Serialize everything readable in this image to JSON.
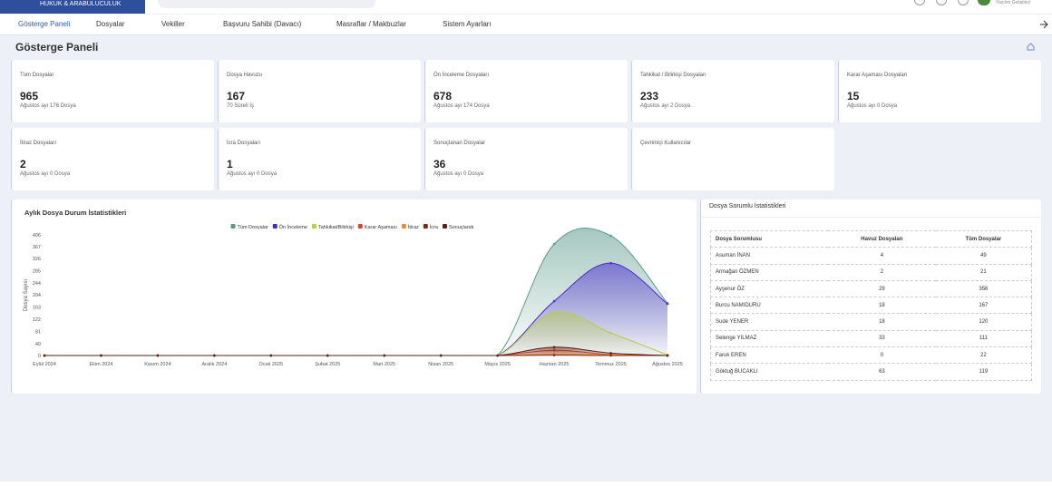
{
  "header": {
    "brand": "HUKUK & ARABULUCULUK",
    "user": "Yazılım Geliştirici"
  },
  "nav": [
    "Gösterge Paneli",
    "Dosyalar",
    "Vekiller",
    "Başvuru Sahibi (Davacı)",
    "Masraflar / Makbuzlar",
    "Sistem Ayarları"
  ],
  "page_title": "Gösterge Paneli",
  "cards": [
    {
      "label": "Tüm Dosyalar",
      "value": "965",
      "note": "Ağustos ayı 176 Dosya"
    },
    {
      "label": "Dosya Havuzu",
      "value": "167",
      "note": "70 Süreli İş"
    },
    {
      "label": "Ön İnceleme Dosyaları",
      "value": "678",
      "note": "Ağustos ayı 174 Dosya"
    },
    {
      "label": "Tahkikat / Bilirkişi Dosyaları",
      "value": "233",
      "note": "Ağustos ayı 2 Dosya"
    },
    {
      "label": "Karar Aşaması Dosyaları",
      "value": "15",
      "note": "Ağustos ayı 0 Dosya"
    },
    {
      "label": "İtiraz Dosyaları",
      "value": "2",
      "note": "Ağustos ayı 0 Dosya"
    },
    {
      "label": "İcra Dosyaları",
      "value": "1",
      "note": "Ağustos ayı 0 Dosya"
    },
    {
      "label": "Sonuçlanan Dosyalar",
      "value": "36",
      "note": "Ağustos ayı 0 Dosya"
    },
    {
      "label": "Çevrimiçi Kullanıcılar"
    }
  ],
  "chart_data": {
    "type": "line",
    "title": "Aylık Dosya Durum İstatistikleri",
    "y_label": "Dosya Sayısı",
    "categories": [
      "Eylül 2024",
      "Ekim 2024",
      "Kasım 2024",
      "Aralık 2024",
      "Ocak 2025",
      "Şubat 2025",
      "Mart 2025",
      "Nisan 2025",
      "Mayıs 2025",
      "Haziran 2025",
      "Temmuz 2025",
      "Ağustos 2025"
    ],
    "ylim": [
      0,
      406
    ],
    "yticks": [
      0,
      40,
      81,
      122,
      163,
      204,
      244,
      285,
      326,
      367,
      406
    ],
    "area": true,
    "series": [
      {
        "name": "Tüm Dosyalar",
        "color": "#5b9a8b",
        "values": [
          0,
          0,
          0,
          0,
          0,
          0,
          0,
          0,
          0,
          375,
          403,
          176
        ]
      },
      {
        "name": "Ön İnceleme",
        "color": "#4a2bd0",
        "values": [
          0,
          0,
          0,
          0,
          0,
          0,
          0,
          0,
          0,
          183,
          311,
          174
        ]
      },
      {
        "name": "Tahkikat/Bilirkişi",
        "color": "#b8cc4e",
        "values": [
          0,
          0,
          0,
          0,
          0,
          0,
          0,
          0,
          0,
          146,
          76,
          2
        ]
      },
      {
        "name": "Karar Aşaması",
        "color": "#d9452b",
        "values": [
          0,
          0,
          0,
          0,
          0,
          0,
          0,
          0,
          0,
          18,
          3,
          0
        ]
      },
      {
        "name": "İtiraz",
        "color": "#f08c2e",
        "values": [
          0,
          0,
          0,
          0,
          0,
          0,
          0,
          0,
          0,
          5,
          2,
          0
        ]
      },
      {
        "name": "İcra",
        "color": "#7a2a14",
        "values": [
          0,
          0,
          0,
          0,
          0,
          0,
          0,
          0,
          0,
          1,
          0,
          0
        ]
      },
      {
        "name": "Sonuçlandı",
        "color": "#5a1f14",
        "values": [
          0,
          0,
          0,
          0,
          0,
          0,
          0,
          0,
          0,
          28,
          8,
          0
        ]
      }
    ]
  },
  "table": {
    "title": "Dosya Sorumlu İstatistikleri",
    "columns": [
      "Dosya Sorumlusu",
      "Havuz Dosyaları",
      "Tüm Dosyalar"
    ],
    "rows": [
      [
        "Asuman İNAN",
        "4",
        "49"
      ],
      [
        "Armağan ÖZMEN",
        "2",
        "21"
      ],
      [
        "Ayşenur ÖZ",
        "29",
        "356"
      ],
      [
        "Burcu NAMIDURU",
        "18",
        "167"
      ],
      [
        "Sude YENER",
        "18",
        "120"
      ],
      [
        "Selenge YILMAZ",
        "33",
        "111"
      ],
      [
        "Faruk EREN",
        "0",
        "22"
      ],
      [
        "Göktuğ BUCAKLI",
        "63",
        "119"
      ]
    ]
  }
}
